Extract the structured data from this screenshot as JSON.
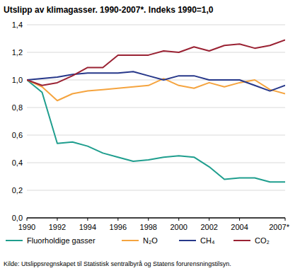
{
  "chart_data": {
    "type": "line",
    "title": "Utslipp av klimagasser. 1990-2007*. Indeks 1990=1,0",
    "source": "Kilde: Utslippsregnskapet til Statistisk sentralbyrå og Statens forurensningstilsyn.",
    "x": [
      1990,
      1991,
      1992,
      1993,
      1994,
      1995,
      1996,
      1997,
      1998,
      1999,
      2000,
      2001,
      2002,
      2003,
      2004,
      2005,
      2006,
      2007
    ],
    "xlim": [
      1990,
      2007
    ],
    "xticks": [
      1990,
      1992,
      1994,
      1996,
      1998,
      2000,
      2002,
      2004,
      {
        "value": 2007,
        "label": "2007*"
      }
    ],
    "ylim": [
      0,
      1.4
    ],
    "yticks": [
      {
        "value": 0,
        "label": "0,0"
      },
      {
        "value": 0.2,
        "label": "0,2"
      },
      {
        "value": 0.4,
        "label": "0,4"
      },
      {
        "value": 0.6,
        "label": "0,6"
      },
      {
        "value": 0.8,
        "label": "0,8"
      },
      {
        "value": 1.0,
        "label": "1,0"
      },
      {
        "value": 1.2,
        "label": "1,2"
      },
      {
        "value": 1.4,
        "label": "1,4"
      }
    ],
    "grid": true,
    "legend": "bottom",
    "series": [
      {
        "name": "Fluorholdige gasser",
        "color": "#1f9e8e",
        "values": [
          1.0,
          0.91,
          0.54,
          0.55,
          0.52,
          0.47,
          0.44,
          0.41,
          0.42,
          0.44,
          0.45,
          0.44,
          0.37,
          0.28,
          0.29,
          0.29,
          0.26,
          0.26
        ]
      },
      {
        "name": "N₂O",
        "color": "#f5a43f",
        "values": [
          1.0,
          0.95,
          0.85,
          0.9,
          0.92,
          0.93,
          0.94,
          0.95,
          0.96,
          1.01,
          0.96,
          0.94,
          0.98,
          0.95,
          0.98,
          1.0,
          0.93,
          0.9
        ]
      },
      {
        "name": "CH₄",
        "color": "#27388a",
        "values": [
          1.0,
          1.01,
          1.02,
          1.04,
          1.05,
          1.05,
          1.05,
          1.06,
          1.03,
          1.0,
          1.03,
          1.03,
          1.0,
          1.0,
          1.0,
          0.96,
          0.92,
          0.96
        ]
      },
      {
        "name": "CO₂",
        "color": "#9a2233",
        "values": [
          1.0,
          0.96,
          0.98,
          1.03,
          1.09,
          1.09,
          1.18,
          1.18,
          1.18,
          1.21,
          1.2,
          1.24,
          1.21,
          1.25,
          1.26,
          1.23,
          1.25,
          1.29
        ]
      }
    ]
  }
}
